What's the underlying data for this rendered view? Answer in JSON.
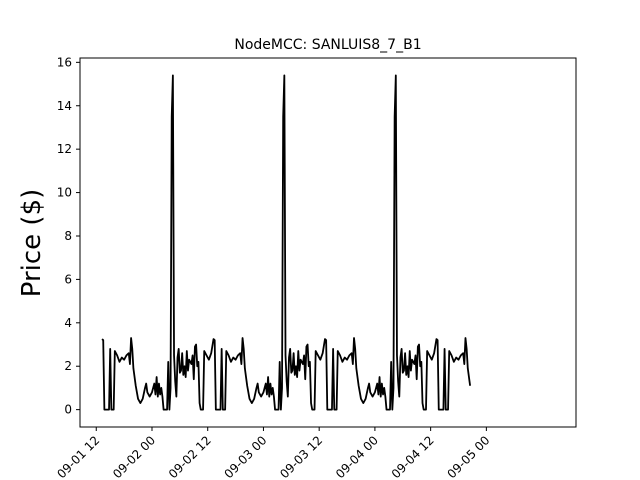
{
  "chart_data": {
    "type": "line",
    "title": "NodeMCC: SANLUIS8_7_B1",
    "xlabel": "",
    "ylabel": "Price ($)",
    "ylim": [
      -0.8,
      16.2
    ],
    "xlim_hours": [
      -15.5,
      91.3
    ],
    "yticks": [
      0,
      2,
      4,
      6,
      8,
      10,
      12,
      14,
      16
    ],
    "xticks": [
      {
        "hour": -12,
        "label": "09-01 12"
      },
      {
        "hour": 0,
        "label": "09-02 00"
      },
      {
        "hour": 12,
        "label": "09-02 12"
      },
      {
        "hour": 24,
        "label": "09-03 00"
      },
      {
        "hour": 36,
        "label": "09-03 12"
      },
      {
        "hour": 48,
        "label": "09-04 00"
      },
      {
        "hour": 60,
        "label": "09-04 12"
      },
      {
        "hour": 72,
        "label": "09-05 00"
      }
    ],
    "grid": false,
    "series": [
      {
        "color": "#000000",
        "day_pattern": [
          [
            0.0,
            3.25
          ],
          [
            0.25,
            3.2
          ],
          [
            0.5,
            0.0
          ],
          [
            1.5,
            0.0
          ],
          [
            1.75,
            2.8
          ],
          [
            2.0,
            0.0
          ],
          [
            2.5,
            0.0
          ],
          [
            2.75,
            2.7
          ],
          [
            3.25,
            2.5
          ],
          [
            3.75,
            2.2
          ],
          [
            4.25,
            2.4
          ],
          [
            4.75,
            2.3
          ],
          [
            5.25,
            2.5
          ],
          [
            5.75,
            2.6
          ],
          [
            6.0,
            2.1
          ],
          [
            6.25,
            3.3
          ],
          [
            6.5,
            2.8
          ],
          [
            6.75,
            1.9
          ],
          [
            7.25,
            1.1
          ],
          [
            7.75,
            0.5
          ],
          [
            8.25,
            0.3
          ],
          [
            8.75,
            0.5
          ],
          [
            9.25,
            1.0
          ],
          [
            9.5,
            1.2
          ],
          [
            9.75,
            0.8
          ],
          [
            10.25,
            0.6
          ],
          [
            10.75,
            0.8
          ],
          [
            11.25,
            1.2
          ],
          [
            11.5,
            0.7
          ],
          [
            11.75,
            1.5
          ],
          [
            12.0,
            0.6
          ],
          [
            12.25,
            1.2
          ],
          [
            12.5,
            0.7
          ],
          [
            12.75,
            1.0
          ],
          [
            13.0,
            0.6
          ],
          [
            13.25,
            0.0
          ],
          [
            14.0,
            0.0
          ],
          [
            14.25,
            2.2
          ],
          [
            14.5,
            0.0
          ],
          [
            14.75,
            1.0
          ],
          [
            15.0,
            13.5
          ],
          [
            15.25,
            15.4
          ],
          [
            15.5,
            2.5
          ],
          [
            15.75,
            1.3
          ],
          [
            16.0,
            0.6
          ],
          [
            16.25,
            2.4
          ],
          [
            16.5,
            2.8
          ],
          [
            16.75,
            1.7
          ],
          [
            17.0,
            1.8
          ],
          [
            17.25,
            2.6
          ],
          [
            17.5,
            1.6
          ],
          [
            17.75,
            2.0
          ],
          [
            18.0,
            1.5
          ],
          [
            18.25,
            2.7
          ],
          [
            18.5,
            1.8
          ],
          [
            18.75,
            2.3
          ],
          [
            19.25,
            2.1
          ],
          [
            19.5,
            2.5
          ],
          [
            19.75,
            1.4
          ],
          [
            20.0,
            2.9
          ],
          [
            20.25,
            3.0
          ],
          [
            20.5,
            2.0
          ],
          [
            20.75,
            2.2
          ],
          [
            21.0,
            0.3
          ],
          [
            21.25,
            0.0
          ],
          [
            21.75,
            0.0
          ],
          [
            22.0,
            2.7
          ],
          [
            22.5,
            2.5
          ],
          [
            23.0,
            2.3
          ],
          [
            23.5,
            2.6
          ],
          [
            24.0,
            3.25
          ]
        ]
      }
    ],
    "day_starts": [
      -10.75,
      13.25,
      37.25,
      61.25
    ],
    "last_day_end_offset": 7.5
  }
}
